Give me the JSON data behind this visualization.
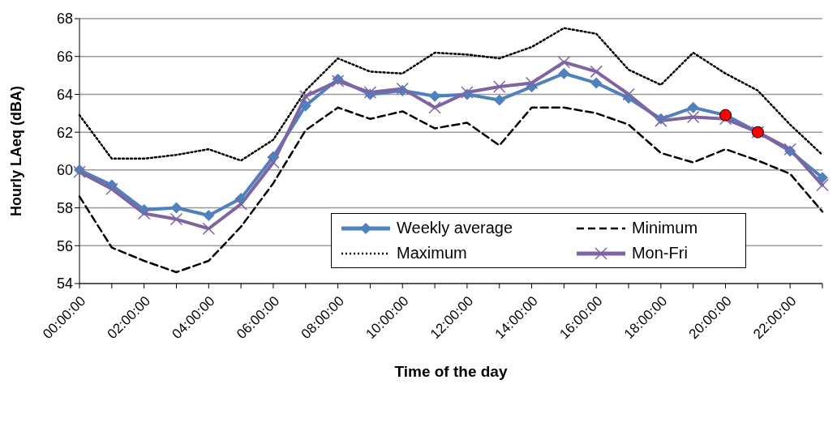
{
  "chart_data": {
    "type": "line",
    "xlabel": "Time of the day",
    "ylabel": "Hourly LAeq (dBA)",
    "categories": [
      "00:00:00",
      null,
      "02:00:00",
      null,
      "04:00:00",
      null,
      "06:00:00",
      null,
      "08:00:00",
      null,
      "10:00:00",
      null,
      "12:00:00",
      null,
      "14:00:00",
      null,
      "16:00:00",
      null,
      "18:00:00",
      null,
      "20:00:00",
      null,
      "22:00:00",
      null
    ],
    "ylim": [
      54,
      68
    ],
    "yticks": [
      54,
      56,
      58,
      60,
      62,
      64,
      66,
      68
    ],
    "grid": "y",
    "legend": "bottom",
    "series": [
      {
        "name": "Weekly average",
        "color": "#4f81bd",
        "marker": "diamond",
        "line_style": "solid",
        "values": [
          60.0,
          59.2,
          57.9,
          58.0,
          57.6,
          58.5,
          60.7,
          63.4,
          64.8,
          64.0,
          64.2,
          63.9,
          64.0,
          63.7,
          64.4,
          65.1,
          64.6,
          63.8,
          62.7,
          63.3,
          62.9,
          62.0,
          61.0,
          59.6
        ]
      },
      {
        "name": "Minimum",
        "color": "#000000",
        "marker": "none",
        "line_style": "dashed",
        "values": [
          58.6,
          55.9,
          55.2,
          54.6,
          55.2,
          57.0,
          59.3,
          62.1,
          63.3,
          62.7,
          63.1,
          62.2,
          62.5,
          61.3,
          63.3,
          63.3,
          63.0,
          62.4,
          60.9,
          60.4,
          61.1,
          60.5,
          59.8,
          57.8
        ]
      },
      {
        "name": "Maximum",
        "color": "#000000",
        "marker": "none",
        "line_style": "dotted",
        "values": [
          62.9,
          60.6,
          60.6,
          60.8,
          61.1,
          60.5,
          61.6,
          64.2,
          65.9,
          65.2,
          65.1,
          66.2,
          66.1,
          65.9,
          66.5,
          67.5,
          67.2,
          65.3,
          64.5,
          66.2,
          65.1,
          64.2,
          62.4,
          60.8
        ]
      },
      {
        "name": "Mon-Fri",
        "color": "#8064a2",
        "marker": "cross",
        "line_style": "solid",
        "values": [
          59.9,
          59.0,
          57.7,
          57.4,
          56.9,
          58.2,
          60.4,
          63.9,
          64.7,
          64.1,
          64.3,
          63.3,
          64.1,
          64.4,
          64.6,
          65.7,
          65.2,
          64.0,
          62.6,
          62.8,
          62.7,
          62.0,
          61.1,
          59.2
        ]
      },
      {
        "type": "scatter",
        "color": "#ff0000",
        "marker": "circle",
        "values": [
          null,
          null,
          null,
          null,
          null,
          null,
          null,
          null,
          null,
          null,
          null,
          null,
          null,
          null,
          null,
          null,
          null,
          null,
          null,
          null,
          62.9,
          62.0,
          null,
          null
        ]
      }
    ]
  }
}
